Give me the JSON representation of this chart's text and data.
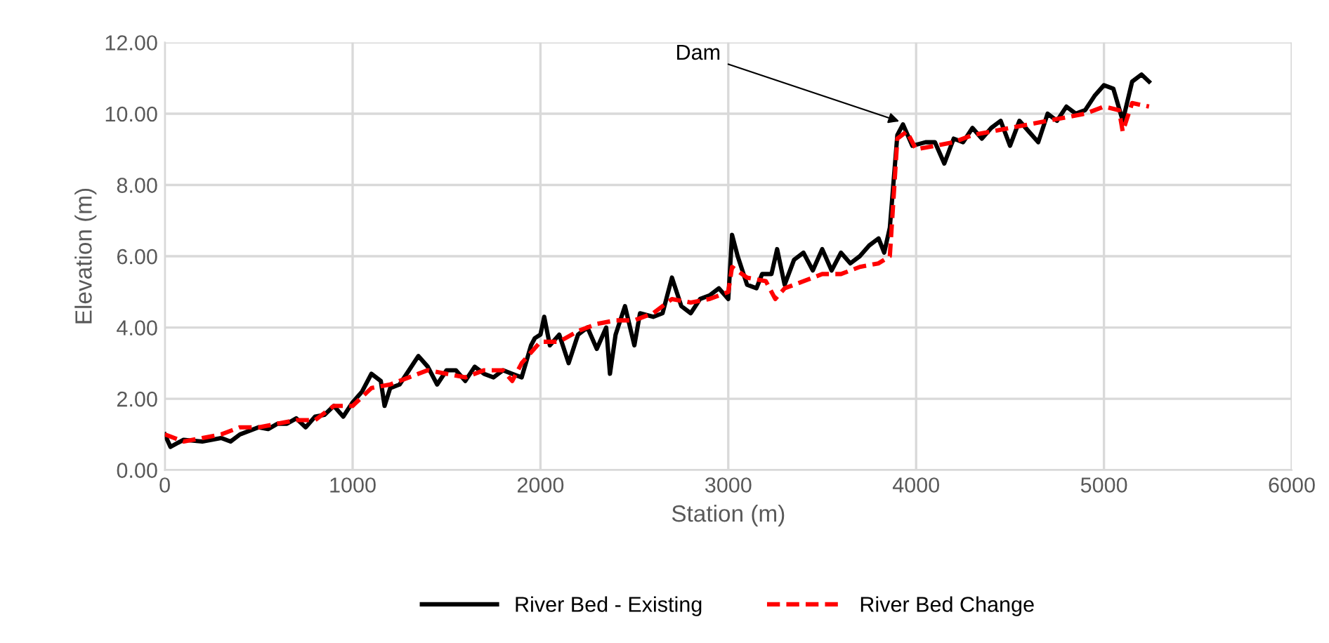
{
  "chart_data": {
    "type": "line",
    "xlabel": "Station (m)",
    "ylabel": "Elevation (m)",
    "xlim": [
      0,
      6000
    ],
    "xticks": [
      0,
      1000,
      2000,
      3000,
      4000,
      5000,
      6000
    ],
    "ylim": [
      0,
      12
    ],
    "yticks": [
      {
        "value": 0,
        "label": "0.00"
      },
      {
        "value": 2,
        "label": "2.00"
      },
      {
        "value": 4,
        "label": "4.00"
      },
      {
        "value": 6,
        "label": "6.00"
      },
      {
        "value": 8,
        "label": "8.00"
      },
      {
        "value": 10,
        "label": "10.00"
      },
      {
        "value": 12,
        "label": "12.00"
      }
    ],
    "grid": true,
    "legend": "bottom",
    "annotations": [
      {
        "text": "Dam",
        "x": 3930,
        "y": 9.75
      }
    ],
    "series": [
      {
        "name": "River Bed - Existing",
        "color": "#000000",
        "line_style": "solid",
        "x": [
          0,
          30,
          100,
          200,
          300,
          350,
          400,
          500,
          550,
          600,
          650,
          700,
          750,
          800,
          850,
          900,
          950,
          1000,
          1050,
          1100,
          1150,
          1170,
          1200,
          1250,
          1300,
          1350,
          1400,
          1450,
          1500,
          1550,
          1600,
          1650,
          1700,
          1750,
          1800,
          1850,
          1900,
          1950,
          1970,
          2000,
          2020,
          2050,
          2100,
          2150,
          2200,
          2250,
          2300,
          2350,
          2370,
          2400,
          2450,
          2500,
          2530,
          2600,
          2650,
          2700,
          2750,
          2800,
          2850,
          2900,
          2950,
          3000,
          3020,
          3050,
          3100,
          3150,
          3180,
          3230,
          3260,
          3300,
          3350,
          3400,
          3450,
          3500,
          3550,
          3600,
          3650,
          3700,
          3750,
          3800,
          3830,
          3860,
          3900,
          3930,
          3980,
          4050,
          4100,
          4150,
          4200,
          4250,
          4300,
          4350,
          4400,
          4450,
          4500,
          4550,
          4600,
          4650,
          4700,
          4750,
          4800,
          4850,
          4900,
          4950,
          5000,
          5050,
          5100,
          5150,
          5200,
          5240
        ],
        "values": [
          1.0,
          0.65,
          0.85,
          0.8,
          0.9,
          0.8,
          1.0,
          1.2,
          1.15,
          1.3,
          1.3,
          1.45,
          1.2,
          1.5,
          1.55,
          1.8,
          1.5,
          1.9,
          2.2,
          2.7,
          2.5,
          1.8,
          2.3,
          2.4,
          2.8,
          3.2,
          2.9,
          2.4,
          2.8,
          2.8,
          2.5,
          2.9,
          2.7,
          2.6,
          2.8,
          2.7,
          2.6,
          3.5,
          3.7,
          3.8,
          4.3,
          3.5,
          3.8,
          3.0,
          3.8,
          4.0,
          3.4,
          4.0,
          2.7,
          3.8,
          4.6,
          3.5,
          4.4,
          4.3,
          4.4,
          5.4,
          4.6,
          4.4,
          4.8,
          4.9,
          5.1,
          4.8,
          6.6,
          6.0,
          5.2,
          5.1,
          5.5,
          5.5,
          6.2,
          5.2,
          5.9,
          6.1,
          5.6,
          6.2,
          5.6,
          6.1,
          5.8,
          6.0,
          6.3,
          6.5,
          6.1,
          6.8,
          9.4,
          9.7,
          9.1,
          9.2,
          9.2,
          8.6,
          9.3,
          9.2,
          9.6,
          9.3,
          9.6,
          9.8,
          9.1,
          9.8,
          9.5,
          9.2,
          10.0,
          9.8,
          10.2,
          10.0,
          10.1,
          10.5,
          10.8,
          10.7,
          9.8,
          10.9,
          11.1,
          10.9
        ]
      },
      {
        "name": "River Bed Change",
        "color": "#ff0000",
        "line_style": "dashed",
        "x": [
          0,
          100,
          200,
          300,
          400,
          500,
          600,
          700,
          800,
          900,
          1000,
          1100,
          1200,
          1300,
          1400,
          1500,
          1600,
          1700,
          1800,
          1850,
          1900,
          2000,
          2100,
          2200,
          2300,
          2400,
          2500,
          2600,
          2700,
          2800,
          2900,
          3000,
          3020,
          3100,
          3200,
          3250,
          3300,
          3400,
          3500,
          3600,
          3700,
          3800,
          3860,
          3900,
          3950,
          4000,
          4100,
          4200,
          4300,
          4400,
          4500,
          4600,
          4700,
          4800,
          4900,
          5000,
          5080,
          5100,
          5150,
          5240
        ],
        "values": [
          1.0,
          0.8,
          0.9,
          1.0,
          1.2,
          1.2,
          1.3,
          1.4,
          1.4,
          1.8,
          1.8,
          2.3,
          2.4,
          2.6,
          2.8,
          2.7,
          2.6,
          2.8,
          2.8,
          2.5,
          3.0,
          3.6,
          3.6,
          3.9,
          4.1,
          4.2,
          4.2,
          4.4,
          4.8,
          4.7,
          4.8,
          5.0,
          5.7,
          5.4,
          5.3,
          4.8,
          5.1,
          5.3,
          5.5,
          5.5,
          5.7,
          5.8,
          6.0,
          9.3,
          9.5,
          9.0,
          9.1,
          9.2,
          9.4,
          9.5,
          9.6,
          9.7,
          9.8,
          9.9,
          10.0,
          10.2,
          10.1,
          9.5,
          10.3,
          10.2
        ]
      }
    ]
  }
}
